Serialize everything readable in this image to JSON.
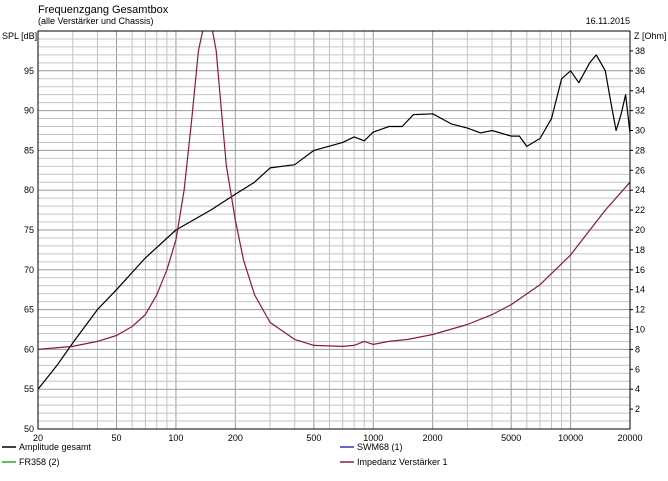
{
  "header": {
    "title": "Frequenzgang Gesamtbox",
    "subtitle": "(alle Verstärker und Chassis)",
    "date": "16.11.2015"
  },
  "chart_data": {
    "type": "line",
    "xscale": "log",
    "xlim": [
      20,
      20000
    ],
    "x_ticks": [
      20,
      50,
      100,
      200,
      500,
      1000,
      2000,
      5000,
      10000,
      20000
    ],
    "x_tick_labels": [
      "20",
      "50",
      "100",
      "200",
      "500",
      "1000",
      "2000",
      "5000",
      "10000",
      "20000"
    ],
    "y_left": {
      "label": "SPL [dB]",
      "lim": [
        50,
        100
      ],
      "ticks": [
        50,
        55,
        60,
        65,
        70,
        75,
        80,
        85,
        90,
        95
      ],
      "tick_labels": [
        "50",
        "55",
        "60",
        "65",
        "70",
        "75",
        "80",
        "85",
        "90",
        "95"
      ]
    },
    "y_right": {
      "label": "Z [Ohm]",
      "lim": [
        0,
        40
      ],
      "ticks": [
        2,
        4,
        6,
        8,
        10,
        12,
        14,
        16,
        18,
        20,
        22,
        24,
        26,
        28,
        30,
        32,
        34,
        36,
        38
      ],
      "tick_labels": [
        "2",
        "4",
        "6",
        "8",
        "10",
        "12",
        "14",
        "16",
        "18",
        "20",
        "22",
        "24",
        "26",
        "28",
        "30",
        "32",
        "34",
        "36",
        "38"
      ]
    },
    "grid": true,
    "legend": [
      {
        "name": "Amplitude gesamt",
        "color": "#000000"
      },
      {
        "name": "SWM68 (1)",
        "color": "#3333cc"
      },
      {
        "name": "FR358 (2)",
        "color": "#22aa22"
      },
      {
        "name": "Impedanz Verstärker 1",
        "color": "#8b1a3a"
      }
    ],
    "series": [
      {
        "name": "Amplitude gesamt",
        "axis": "left",
        "color": "#000000",
        "points": [
          [
            20,
            55
          ],
          [
            25,
            58
          ],
          [
            30,
            60.8
          ],
          [
            40,
            65
          ],
          [
            50,
            67.5
          ],
          [
            70,
            71.5
          ],
          [
            100,
            75
          ],
          [
            150,
            77.5
          ],
          [
            200,
            79.5
          ],
          [
            250,
            81
          ],
          [
            300,
            82.8
          ],
          [
            400,
            83.2
          ],
          [
            500,
            85
          ],
          [
            700,
            86
          ],
          [
            800,
            86.7
          ],
          [
            900,
            86.2
          ],
          [
            1000,
            87.3
          ],
          [
            1200,
            88
          ],
          [
            1400,
            88
          ],
          [
            1600,
            89.5
          ],
          [
            2000,
            89.6
          ],
          [
            2500,
            88.3
          ],
          [
            3000,
            87.8
          ],
          [
            3500,
            87.2
          ],
          [
            4000,
            87.5
          ],
          [
            5000,
            86.8
          ],
          [
            5500,
            86.8
          ],
          [
            6000,
            85.5
          ],
          [
            7000,
            86.5
          ],
          [
            8000,
            89
          ],
          [
            9000,
            94
          ],
          [
            10000,
            95
          ],
          [
            11000,
            93.5
          ],
          [
            12500,
            96
          ],
          [
            13500,
            97
          ],
          [
            15000,
            95
          ],
          [
            16000,
            91
          ],
          [
            17000,
            87.5
          ],
          [
            18000,
            89.5
          ],
          [
            19000,
            92
          ],
          [
            20000,
            87.2
          ]
        ]
      },
      {
        "name": "Impedanz Verstärker 1",
        "axis": "right",
        "color": "#8b1a3a",
        "points": [
          [
            20,
            8
          ],
          [
            30,
            8.3
          ],
          [
            40,
            8.8
          ],
          [
            50,
            9.4
          ],
          [
            60,
            10.3
          ],
          [
            70,
            11.5
          ],
          [
            80,
            13.5
          ],
          [
            90,
            16
          ],
          [
            100,
            19
          ],
          [
            110,
            24
          ],
          [
            120,
            31
          ],
          [
            130,
            38
          ],
          [
            140,
            41
          ],
          [
            150,
            41
          ],
          [
            160,
            38
          ],
          [
            170,
            32
          ],
          [
            180,
            26.5
          ],
          [
            200,
            21
          ],
          [
            220,
            17
          ],
          [
            250,
            13.5
          ],
          [
            300,
            10.7
          ],
          [
            400,
            9
          ],
          [
            500,
            8.4
          ],
          [
            700,
            8.3
          ],
          [
            800,
            8.4
          ],
          [
            900,
            8.8
          ],
          [
            1000,
            8.5
          ],
          [
            1200,
            8.8
          ],
          [
            1500,
            9
          ],
          [
            2000,
            9.5
          ],
          [
            3000,
            10.5
          ],
          [
            4000,
            11.5
          ],
          [
            5000,
            12.5
          ],
          [
            7000,
            14.5
          ],
          [
            10000,
            17.5
          ],
          [
            15000,
            22
          ],
          [
            20000,
            24.8
          ]
        ]
      }
    ]
  }
}
